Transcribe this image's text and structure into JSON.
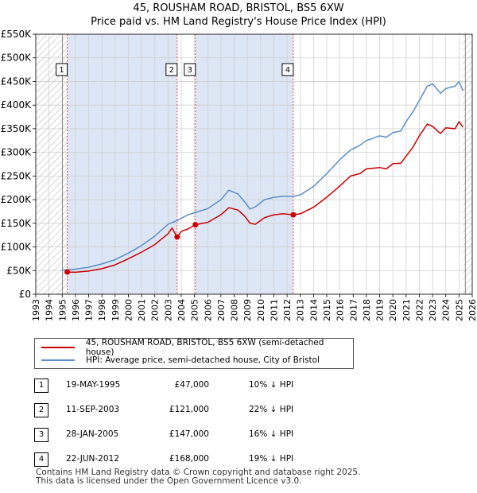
{
  "header": {
    "title": "45, ROUSHAM ROAD, BRISTOL, BS5 6XW",
    "subtitle": "Price paid vs. HM Land Registry's House Price Index (HPI)"
  },
  "colors": {
    "price_line": "#cc0000",
    "hpi_line": "#5b8ec9",
    "shade": "#dde6f4",
    "vline": "#e05050"
  },
  "chart_data": {
    "type": "line",
    "title": "45, ROUSHAM ROAD, BRISTOL, BS5 6XW",
    "subtitle": "Price paid vs. HM Land Registry's House Price Index (HPI)",
    "xlim": [
      1993,
      2026
    ],
    "ylim": [
      0,
      550000
    ],
    "x_ticks": [
      "1993",
      "1994",
      "1995",
      "1996",
      "1997",
      "1998",
      "1999",
      "2000",
      "2001",
      "2002",
      "2003",
      "2004",
      "2005",
      "2006",
      "2007",
      "2008",
      "2009",
      "2010",
      "2011",
      "2012",
      "2013",
      "2014",
      "2015",
      "2016",
      "2017",
      "2018",
      "2019",
      "2020",
      "2021",
      "2022",
      "2023",
      "2024",
      "2025",
      "2026"
    ],
    "y_ticks": [
      {
        "value": 0,
        "label": "£0"
      },
      {
        "value": 50000,
        "label": "£50K"
      },
      {
        "value": 100000,
        "label": "£100K"
      },
      {
        "value": 150000,
        "label": "£150K"
      },
      {
        "value": 200000,
        "label": "£200K"
      },
      {
        "value": 250000,
        "label": "£250K"
      },
      {
        "value": 300000,
        "label": "£300K"
      },
      {
        "value": 350000,
        "label": "£350K"
      },
      {
        "value": 400000,
        "label": "£400K"
      },
      {
        "value": 450000,
        "label": "£450K"
      },
      {
        "value": 500000,
        "label": "£500K"
      },
      {
        "value": 550000,
        "label": "£550K"
      }
    ],
    "grid": true,
    "hatched_ranges": [
      [
        1993,
        1995.38
      ],
      [
        2025.3,
        2026
      ]
    ],
    "shaded_ranges": [
      [
        1995.38,
        2003.69
      ],
      [
        2005.07,
        2012.47
      ]
    ],
    "series": [
      {
        "name": "45, ROUSHAM ROAD, BRISTOL, BS5 6XW (semi-detached house)",
        "color": "#cc0000",
        "points": [
          [
            1995.38,
            47000
          ],
          [
            1996.0,
            46500
          ],
          [
            1997.0,
            49000
          ],
          [
            1998.0,
            54000
          ],
          [
            1999.0,
            62000
          ],
          [
            2000.0,
            75000
          ],
          [
            2001.0,
            89000
          ],
          [
            2002.0,
            105000
          ],
          [
            2003.0,
            128000
          ],
          [
            2003.3,
            140000
          ],
          [
            2003.69,
            121000
          ],
          [
            2004.0,
            133000
          ],
          [
            2004.5,
            138000
          ],
          [
            2005.07,
            147000
          ],
          [
            2006.0,
            152000
          ],
          [
            2007.0,
            168000
          ],
          [
            2007.6,
            183000
          ],
          [
            2008.3,
            178000
          ],
          [
            2008.8,
            165000
          ],
          [
            2009.2,
            150000
          ],
          [
            2009.6,
            148000
          ],
          [
            2010.3,
            162000
          ],
          [
            2011.0,
            168000
          ],
          [
            2011.7,
            170000
          ],
          [
            2012.47,
            168000
          ],
          [
            2013.0,
            170000
          ],
          [
            2014.0,
            184000
          ],
          [
            2015.0,
            205000
          ],
          [
            2016.0,
            229000
          ],
          [
            2016.8,
            250000
          ],
          [
            2017.5,
            255000
          ],
          [
            2018.0,
            265000
          ],
          [
            2019.0,
            268000
          ],
          [
            2019.5,
            265000
          ],
          [
            2020.0,
            276000
          ],
          [
            2020.6,
            277000
          ],
          [
            2021.0,
            292000
          ],
          [
            2021.5,
            310000
          ],
          [
            2022.0,
            335000
          ],
          [
            2022.6,
            360000
          ],
          [
            2023.0,
            355000
          ],
          [
            2023.6,
            340000
          ],
          [
            2024.0,
            352000
          ],
          [
            2024.7,
            350000
          ],
          [
            2025.0,
            365000
          ],
          [
            2025.3,
            353000
          ]
        ]
      },
      {
        "name": "HPI: Average price, semi-detached house, City of Bristol",
        "color": "#5b8ec9",
        "points": [
          [
            1995.0,
            51000
          ],
          [
            1996.0,
            53000
          ],
          [
            1997.0,
            57000
          ],
          [
            1998.0,
            64000
          ],
          [
            1999.0,
            73000
          ],
          [
            2000.0,
            87000
          ],
          [
            2001.0,
            103000
          ],
          [
            2002.0,
            123000
          ],
          [
            2003.0,
            148000
          ],
          [
            2003.69,
            156000
          ],
          [
            2004.5,
            168000
          ],
          [
            2005.07,
            173000
          ],
          [
            2006.0,
            181000
          ],
          [
            2007.0,
            200000
          ],
          [
            2007.6,
            220000
          ],
          [
            2008.3,
            212000
          ],
          [
            2008.8,
            195000
          ],
          [
            2009.2,
            180000
          ],
          [
            2009.6,
            185000
          ],
          [
            2010.3,
            200000
          ],
          [
            2011.0,
            205000
          ],
          [
            2011.7,
            207000
          ],
          [
            2012.47,
            207000
          ],
          [
            2013.0,
            210000
          ],
          [
            2014.0,
            228000
          ],
          [
            2015.0,
            255000
          ],
          [
            2016.0,
            285000
          ],
          [
            2016.8,
            305000
          ],
          [
            2017.5,
            315000
          ],
          [
            2018.0,
            325000
          ],
          [
            2019.0,
            335000
          ],
          [
            2019.5,
            332000
          ],
          [
            2020.0,
            342000
          ],
          [
            2020.6,
            345000
          ],
          [
            2021.0,
            365000
          ],
          [
            2021.5,
            385000
          ],
          [
            2022.0,
            410000
          ],
          [
            2022.6,
            440000
          ],
          [
            2023.0,
            445000
          ],
          [
            2023.6,
            425000
          ],
          [
            2024.0,
            435000
          ],
          [
            2024.7,
            440000
          ],
          [
            2025.0,
            450000
          ],
          [
            2025.3,
            430000
          ]
        ]
      }
    ],
    "sale_markers": [
      {
        "id": "1",
        "x": 1995.38,
        "price": 47000
      },
      {
        "id": "2",
        "x": 2003.69,
        "price": 121000
      },
      {
        "id": "3",
        "x": 2005.07,
        "price": 147000
      },
      {
        "id": "4",
        "x": 2012.47,
        "price": 168000
      }
    ]
  },
  "legend": {
    "items": [
      {
        "label": "45, ROUSHAM ROAD, BRISTOL, BS5 6XW (semi-detached house)",
        "color": "#cc0000"
      },
      {
        "label": "HPI: Average price, semi-detached house, City of Bristol",
        "color": "#5b8ec9"
      }
    ]
  },
  "sales": [
    {
      "num": "1",
      "date": "19-MAY-1995",
      "price": "£47,000",
      "hpi": "10% ↓ HPI"
    },
    {
      "num": "2",
      "date": "11-SEP-2003",
      "price": "£121,000",
      "hpi": "22% ↓ HPI"
    },
    {
      "num": "3",
      "date": "28-JAN-2005",
      "price": "£147,000",
      "hpi": "16% ↓ HPI"
    },
    {
      "num": "4",
      "date": "22-JUN-2012",
      "price": "£168,000",
      "hpi": "19% ↓ HPI"
    }
  ],
  "footer": {
    "line1": "Contains HM Land Registry data © Crown copyright and database right 2025.",
    "line2": "This data is licensed under the Open Government Licence v3.0."
  }
}
